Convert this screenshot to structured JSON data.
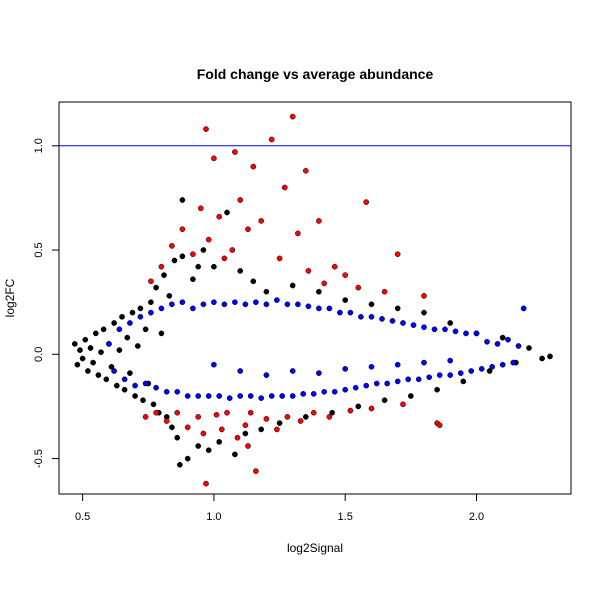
{
  "chart_data": {
    "type": "scatter",
    "title": "Fold change vs average abundance",
    "xlabel": "log2Signal",
    "ylabel": "log2FC",
    "xlim": [
      0.41,
      2.36
    ],
    "ylim": [
      -0.67,
      1.21
    ],
    "x_ticks": [
      0.5,
      1.0,
      1.5,
      2.0
    ],
    "x_tick_labels": [
      "0.5",
      "1.0",
      "1.5",
      "2.0"
    ],
    "y_ticks": [
      -0.5,
      0.0,
      0.5,
      1.0
    ],
    "y_tick_labels": [
      "-0.5",
      "0.0",
      "0.5",
      "1.0"
    ],
    "reference_line": {
      "orientation": "horizontal",
      "y": 1.0,
      "color": "#0000ff"
    },
    "grid": false,
    "legend": "none",
    "colors": {
      "black": "#000000",
      "blue": "#0000ff",
      "red": "#ff0000"
    },
    "series": [
      {
        "color": "black",
        "points": [
          [
            0.47,
            0.05
          ],
          [
            0.48,
            -0.05
          ],
          [
            0.49,
            0.02
          ],
          [
            0.5,
            -0.02
          ],
          [
            0.51,
            0.07
          ],
          [
            0.52,
            -0.08
          ],
          [
            0.53,
            0.03
          ],
          [
            0.54,
            -0.04
          ],
          [
            0.55,
            0.1
          ],
          [
            0.56,
            -0.1
          ],
          [
            0.57,
            0.01
          ],
          [
            0.58,
            0.12
          ],
          [
            0.59,
            -0.12
          ],
          [
            0.6,
            0.05
          ],
          [
            0.61,
            -0.06
          ],
          [
            0.62,
            0.15
          ],
          [
            0.63,
            -0.15
          ],
          [
            0.64,
            0.02
          ],
          [
            0.65,
            0.18
          ],
          [
            0.66,
            -0.17
          ],
          [
            0.67,
            0.08
          ],
          [
            0.68,
            -0.09
          ],
          [
            0.69,
            0.2
          ],
          [
            0.7,
            -0.2
          ],
          [
            0.71,
            0.04
          ],
          [
            0.72,
            0.22
          ],
          [
            0.73,
            -0.22
          ],
          [
            0.74,
            0.12
          ],
          [
            0.75,
            -0.14
          ],
          [
            0.76,
            0.25
          ],
          [
            0.77,
            -0.24
          ],
          [
            0.78,
            0.32
          ],
          [
            0.79,
            -0.28
          ],
          [
            0.8,
            0.1
          ],
          [
            0.81,
            0.38
          ],
          [
            0.82,
            -0.3
          ],
          [
            0.83,
            0.28
          ],
          [
            0.84,
            -0.35
          ],
          [
            0.85,
            0.45
          ],
          [
            0.86,
            -0.4
          ],
          [
            0.87,
            -0.53
          ],
          [
            0.88,
            0.47
          ],
          [
            0.9,
            -0.5
          ],
          [
            0.92,
            0.36
          ],
          [
            0.94,
            -0.44
          ],
          [
            0.96,
            0.5
          ],
          [
            0.98,
            -0.46
          ],
          [
            1.0,
            0.42
          ],
          [
            1.02,
            -0.42
          ],
          [
            1.05,
            0.68
          ],
          [
            1.08,
            -0.48
          ],
          [
            1.1,
            0.4
          ],
          [
            1.12,
            -0.38
          ],
          [
            1.15,
            0.35
          ],
          [
            1.18,
            -0.36
          ],
          [
            1.2,
            0.3
          ],
          [
            1.25,
            -0.33
          ],
          [
            1.3,
            0.33
          ],
          [
            1.35,
            -0.3
          ],
          [
            1.4,
            0.3
          ],
          [
            1.45,
            -0.28
          ],
          [
            1.5,
            0.26
          ],
          [
            1.55,
            -0.25
          ],
          [
            1.6,
            0.24
          ],
          [
            1.65,
            -0.22
          ],
          [
            1.7,
            0.22
          ],
          [
            1.75,
            -0.2
          ],
          [
            1.8,
            0.2
          ],
          [
            1.85,
            -0.17
          ],
          [
            1.9,
            0.15
          ],
          [
            1.95,
            -0.13
          ],
          [
            2.0,
            0.1
          ],
          [
            2.05,
            -0.08
          ],
          [
            2.1,
            0.08
          ],
          [
            2.15,
            -0.04
          ],
          [
            2.2,
            0.03
          ],
          [
            2.25,
            -0.02
          ],
          [
            2.28,
            -0.01
          ],
          [
            0.88,
            0.74
          ],
          [
            0.94,
            0.42
          ]
        ]
      },
      {
        "color": "blue",
        "points": [
          [
            0.6,
            0.05
          ],
          [
            0.62,
            -0.08
          ],
          [
            0.64,
            0.12
          ],
          [
            0.66,
            -0.12
          ],
          [
            0.68,
            0.15
          ],
          [
            0.7,
            -0.15
          ],
          [
            0.72,
            0.18
          ],
          [
            0.74,
            -0.14
          ],
          [
            0.76,
            0.2
          ],
          [
            0.78,
            -0.16
          ],
          [
            0.8,
            0.22
          ],
          [
            0.82,
            -0.18
          ],
          [
            0.84,
            0.24
          ],
          [
            0.86,
            -0.18
          ],
          [
            0.88,
            0.25
          ],
          [
            0.9,
            -0.2
          ],
          [
            0.92,
            0.22
          ],
          [
            0.94,
            -0.2
          ],
          [
            0.96,
            0.24
          ],
          [
            0.98,
            -0.2
          ],
          [
            1.0,
            0.25
          ],
          [
            1.02,
            -0.2
          ],
          [
            1.04,
            0.24
          ],
          [
            1.06,
            -0.21
          ],
          [
            1.08,
            0.25
          ],
          [
            1.1,
            -0.2
          ],
          [
            1.12,
            0.24
          ],
          [
            1.14,
            -0.2
          ],
          [
            1.16,
            0.25
          ],
          [
            1.18,
            -0.21
          ],
          [
            1.2,
            0.24
          ],
          [
            1.22,
            -0.2
          ],
          [
            1.24,
            0.26
          ],
          [
            1.26,
            -0.2
          ],
          [
            1.28,
            0.24
          ],
          [
            1.3,
            -0.2
          ],
          [
            1.32,
            0.24
          ],
          [
            1.34,
            -0.19
          ],
          [
            1.36,
            0.23
          ],
          [
            1.38,
            -0.19
          ],
          [
            1.4,
            0.22
          ],
          [
            1.42,
            -0.18
          ],
          [
            1.44,
            0.22
          ],
          [
            1.46,
            -0.18
          ],
          [
            1.48,
            0.2
          ],
          [
            1.5,
            -0.17
          ],
          [
            1.52,
            0.2
          ],
          [
            1.54,
            -0.16
          ],
          [
            1.56,
            0.18
          ],
          [
            1.58,
            -0.15
          ],
          [
            1.6,
            0.18
          ],
          [
            1.62,
            -0.14
          ],
          [
            1.64,
            0.17
          ],
          [
            1.66,
            -0.14
          ],
          [
            1.68,
            0.16
          ],
          [
            1.7,
            -0.13
          ],
          [
            1.72,
            0.15
          ],
          [
            1.74,
            -0.12
          ],
          [
            1.76,
            0.14
          ],
          [
            1.78,
            -0.12
          ],
          [
            1.8,
            0.13
          ],
          [
            1.82,
            -0.11
          ],
          [
            1.84,
            0.12
          ],
          [
            1.86,
            -0.1
          ],
          [
            1.88,
            0.12
          ],
          [
            1.9,
            -0.1
          ],
          [
            1.92,
            0.11
          ],
          [
            1.94,
            -0.09
          ],
          [
            1.96,
            0.1
          ],
          [
            1.98,
            -0.08
          ],
          [
            2.0,
            0.1
          ],
          [
            2.02,
            -0.07
          ],
          [
            2.04,
            0.06
          ],
          [
            2.06,
            -0.06
          ],
          [
            2.08,
            0.05
          ],
          [
            2.1,
            -0.05
          ],
          [
            2.12,
            0.07
          ],
          [
            2.14,
            -0.04
          ],
          [
            2.16,
            0.04
          ],
          [
            2.18,
            0.22
          ],
          [
            1.0,
            -0.05
          ],
          [
            1.1,
            -0.08
          ],
          [
            1.2,
            -0.1
          ],
          [
            1.3,
            -0.08
          ],
          [
            1.4,
            -0.09
          ],
          [
            1.5,
            -0.07
          ],
          [
            1.6,
            -0.06
          ],
          [
            1.7,
            -0.05
          ],
          [
            1.8,
            -0.04
          ],
          [
            1.9,
            -0.03
          ]
        ]
      },
      {
        "color": "red",
        "points": [
          [
            0.74,
            -0.3
          ],
          [
            0.76,
            0.35
          ],
          [
            0.78,
            -0.28
          ],
          [
            0.8,
            0.42
          ],
          [
            0.82,
            -0.32
          ],
          [
            0.84,
            0.52
          ],
          [
            0.86,
            -0.28
          ],
          [
            0.88,
            0.6
          ],
          [
            0.9,
            -0.35
          ],
          [
            0.92,
            0.48
          ],
          [
            0.94,
            -0.3
          ],
          [
            0.95,
            0.7
          ],
          [
            0.96,
            -0.38
          ],
          [
            0.97,
            1.08
          ],
          [
            0.98,
            0.55
          ],
          [
            1.0,
            0.94
          ],
          [
            1.01,
            -0.29
          ],
          [
            1.02,
            0.66
          ],
          [
            1.03,
            -0.36
          ],
          [
            1.04,
            0.46
          ],
          [
            1.05,
            -0.28
          ],
          [
            1.07,
            0.5
          ],
          [
            1.08,
            0.97
          ],
          [
            1.09,
            -0.4
          ],
          [
            1.1,
            0.74
          ],
          [
            1.12,
            -0.34
          ],
          [
            1.13,
            0.6
          ],
          [
            1.14,
            -0.28
          ],
          [
            1.15,
            0.9
          ],
          [
            1.16,
            -0.56
          ],
          [
            1.18,
            0.64
          ],
          [
            1.2,
            -0.31
          ],
          [
            1.22,
            1.03
          ],
          [
            1.24,
            -0.36
          ],
          [
            1.25,
            0.46
          ],
          [
            1.27,
            0.8
          ],
          [
            1.28,
            -0.3
          ],
          [
            1.3,
            1.14
          ],
          [
            1.32,
            0.58
          ],
          [
            1.33,
            -0.32
          ],
          [
            1.35,
            0.88
          ],
          [
            1.36,
            0.4
          ],
          [
            1.38,
            -0.28
          ],
          [
            1.4,
            0.64
          ],
          [
            1.42,
            0.34
          ],
          [
            1.44,
            -0.3
          ],
          [
            1.46,
            0.42
          ],
          [
            1.5,
            0.38
          ],
          [
            1.52,
            -0.27
          ],
          [
            1.55,
            0.32
          ],
          [
            1.58,
            0.73
          ],
          [
            1.6,
            -0.26
          ],
          [
            1.65,
            0.3
          ],
          [
            1.7,
            0.48
          ],
          [
            1.72,
            -0.24
          ],
          [
            1.8,
            0.28
          ],
          [
            1.85,
            -0.33
          ],
          [
            1.86,
            -0.34
          ],
          [
            0.97,
            -0.62
          ],
          [
            1.13,
            -0.44
          ]
        ]
      }
    ]
  }
}
